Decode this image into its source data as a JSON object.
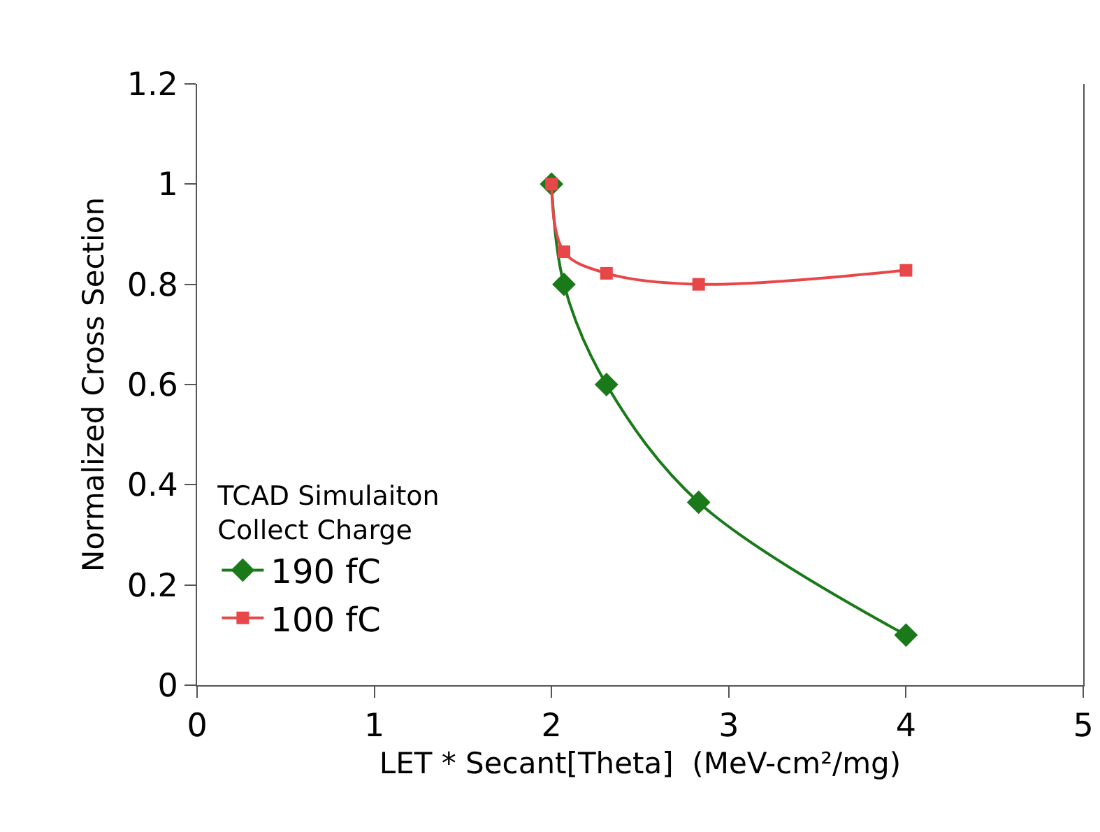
{
  "chart_data": {
    "type": "line",
    "xlabel": "LET * Secant[Theta]  (MeV-cm²/mg)",
    "ylabel": "Normalized Cross Section",
    "legend_title": "TCAD Simulaiton\nCollect Charge",
    "series": [
      {
        "name": "190 fC",
        "color": "#1a7a1a",
        "marker": "diamond",
        "x": [
          2.0,
          2.07,
          2.31,
          2.83,
          4.0
        ],
        "values": [
          1.0,
          0.8,
          0.6,
          0.365,
          0.1
        ]
      },
      {
        "name": "100 fC",
        "color": "#e8474a",
        "marker": "square",
        "x": [
          2.0,
          2.07,
          2.31,
          2.83,
          4.0
        ],
        "values": [
          1.0,
          0.865,
          0.822,
          0.8,
          0.828
        ]
      }
    ],
    "xlim": [
      0,
      5
    ],
    "xticks": [
      0,
      1,
      2,
      3,
      4,
      5
    ],
    "ylim": [
      0,
      1.2
    ],
    "yticks": [
      0,
      0.2,
      0.4,
      0.6,
      0.8,
      1,
      1.2
    ],
    "grid": false,
    "legend": "bottom left",
    "line_style": "solid"
  }
}
